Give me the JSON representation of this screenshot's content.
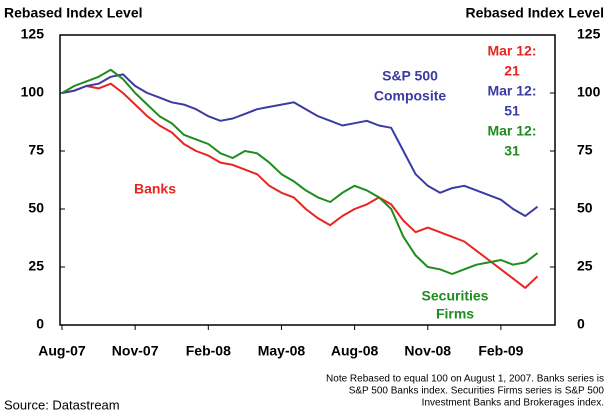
{
  "chart_data": {
    "type": "line",
    "y_axis_label": "Rebased Index Level",
    "y2_axis_label": "Rebased Index Level",
    "categories": [
      "Aug-07",
      null,
      null,
      null,
      null,
      null,
      "Nov-07",
      null,
      null,
      null,
      null,
      null,
      "Feb-08",
      null,
      null,
      null,
      null,
      null,
      "May-08",
      null,
      null,
      null,
      null,
      null,
      "Aug-08",
      null,
      null,
      null,
      null,
      null,
      "Nov-08",
      null,
      null,
      null,
      null,
      null,
      "Feb-09",
      null,
      null,
      null
    ],
    "series": [
      {
        "name_lines": [
          "Banks"
        ],
        "color": "#e8251f",
        "end_label": "Mar 12:",
        "values": [
          100,
          101,
          103,
          102,
          104,
          100,
          95,
          90,
          86,
          83,
          78,
          75,
          73,
          70,
          69,
          67,
          65,
          60,
          57,
          55,
          50,
          46,
          43,
          47,
          50,
          52,
          55,
          52,
          45,
          40,
          42,
          40,
          38,
          36,
          32,
          28,
          24,
          20,
          16,
          21
        ]
      },
      {
        "name_lines": [
          "S&P 500",
          "Composite"
        ],
        "color": "#3b3ba3",
        "end_label": "Mar 12:",
        "values": [
          100,
          101,
          103,
          104,
          107,
          108,
          103,
          100,
          98,
          96,
          95,
          93,
          90,
          88,
          89,
          91,
          93,
          94,
          95,
          96,
          93,
          90,
          88,
          86,
          87,
          88,
          86,
          85,
          75,
          65,
          60,
          57,
          59,
          60,
          58,
          56,
          54,
          50,
          47,
          51
        ]
      },
      {
        "name_lines": [
          "Securities",
          "Firms"
        ],
        "color": "#1e8c1e",
        "end_label": "Mar 12:",
        "values": [
          100,
          103,
          105,
          107,
          110,
          106,
          100,
          95,
          90,
          87,
          82,
          80,
          78,
          74,
          72,
          75,
          74,
          70,
          65,
          62,
          58,
          55,
          53,
          57,
          60,
          58,
          55,
          50,
          38,
          30,
          25,
          24,
          22,
          24,
          26,
          27,
          28,
          26,
          27,
          31
        ]
      }
    ],
    "ylim": [
      0,
      125
    ],
    "yticks": [
      0,
      25,
      50,
      75,
      100,
      125
    ],
    "y2lim": [
      0,
      125
    ],
    "y2ticks": [
      0,
      25,
      50,
      75,
      100,
      125
    ],
    "note": [
      "Note  Rebased to equal 100 on August 1, 2007. Banks series is",
      "S&P 500 Banks index. Securities Firms series is S&P 500",
      "Investment Banks and Brokerages index."
    ],
    "source": "Source: Datastream"
  }
}
